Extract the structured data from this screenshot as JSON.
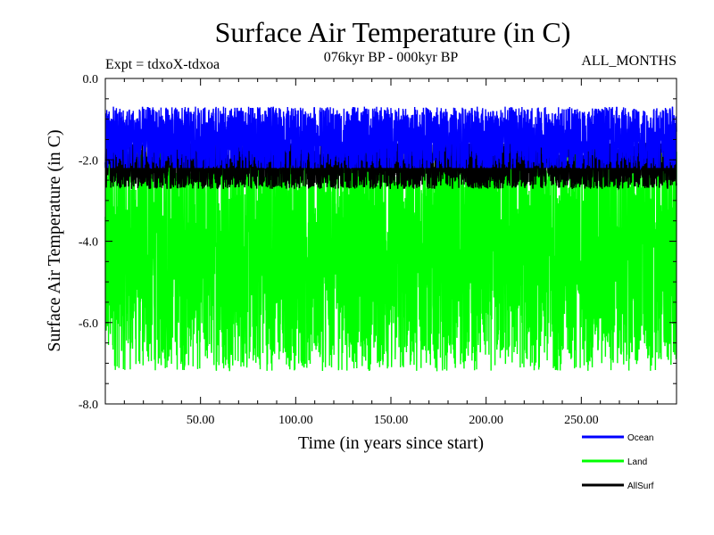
{
  "chart_data": {
    "type": "line",
    "title": "Surface Air Temperature (in C)",
    "subtitle_left": "Expt = tdxoX-tdxoa",
    "subtitle_center": "076kyr BP - 000kyr BP",
    "subtitle_right": "ALL_MONTHS",
    "xlabel": "Time (in years since start)",
    "ylabel": "Surface Air Temperature (in C)",
    "xlim": [
      0,
      300
    ],
    "ylim": [
      -8.0,
      0.0
    ],
    "xticks": [
      50,
      100,
      150,
      200,
      250
    ],
    "xtick_labels": [
      "50.00",
      "100.00",
      "150.00",
      "200.00",
      "250.00"
    ],
    "yticks": [
      0,
      -2,
      -4,
      -6,
      -8
    ],
    "ytick_labels": [
      "0.0",
      "-2.0",
      "-4.0",
      "-6.0",
      "-8.0"
    ],
    "grid": false,
    "legend_position": "bottom-right, below plot",
    "series": [
      {
        "name": "Ocean",
        "color": "#0000ff",
        "low_approx": -2.2,
        "high_approx": -0.5,
        "mean_approx": -1.5
      },
      {
        "name": "Land",
        "color": "#00ff00",
        "low_approx": -7.9,
        "high_approx": -1.8,
        "mean_approx": -4.3
      },
      {
        "name": "AllSurf",
        "color": "#000000",
        "low_approx": -2.9,
        "high_approx": -1.6,
        "mean_approx": -2.1
      }
    ]
  }
}
